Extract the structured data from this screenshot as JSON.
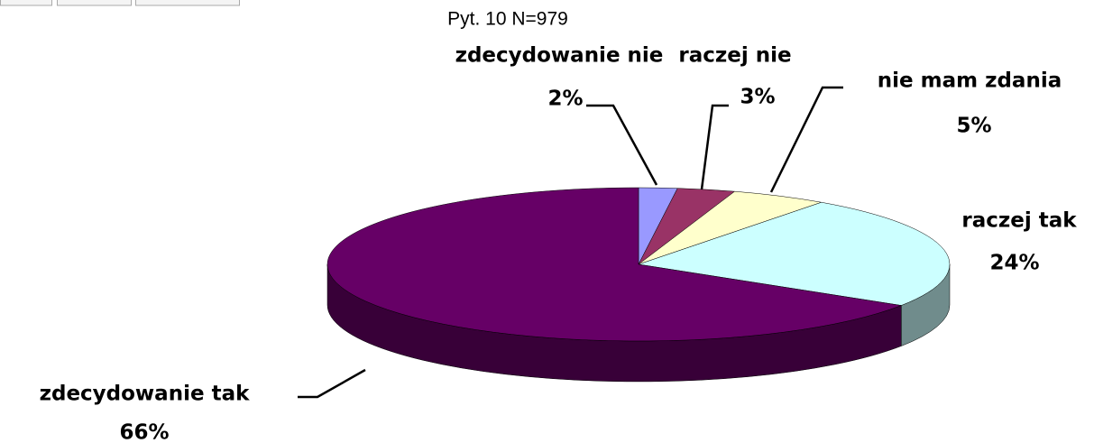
{
  "chart_data": {
    "type": "pie",
    "title": "Pyt. 10 N=979",
    "categories": [
      "zdecydowanie nie",
      "raczej nie",
      "nie mam zdania",
      "raczej tak",
      "zdecydowanie tak"
    ],
    "values": [
      2,
      3,
      5,
      24,
      66
    ],
    "value_labels": [
      "2%",
      "3%",
      "5%",
      "24%",
      "66%"
    ],
    "colors": [
      "#9999ff",
      "#993366",
      "#ffffcc",
      "#ccffff",
      "#660066"
    ]
  }
}
